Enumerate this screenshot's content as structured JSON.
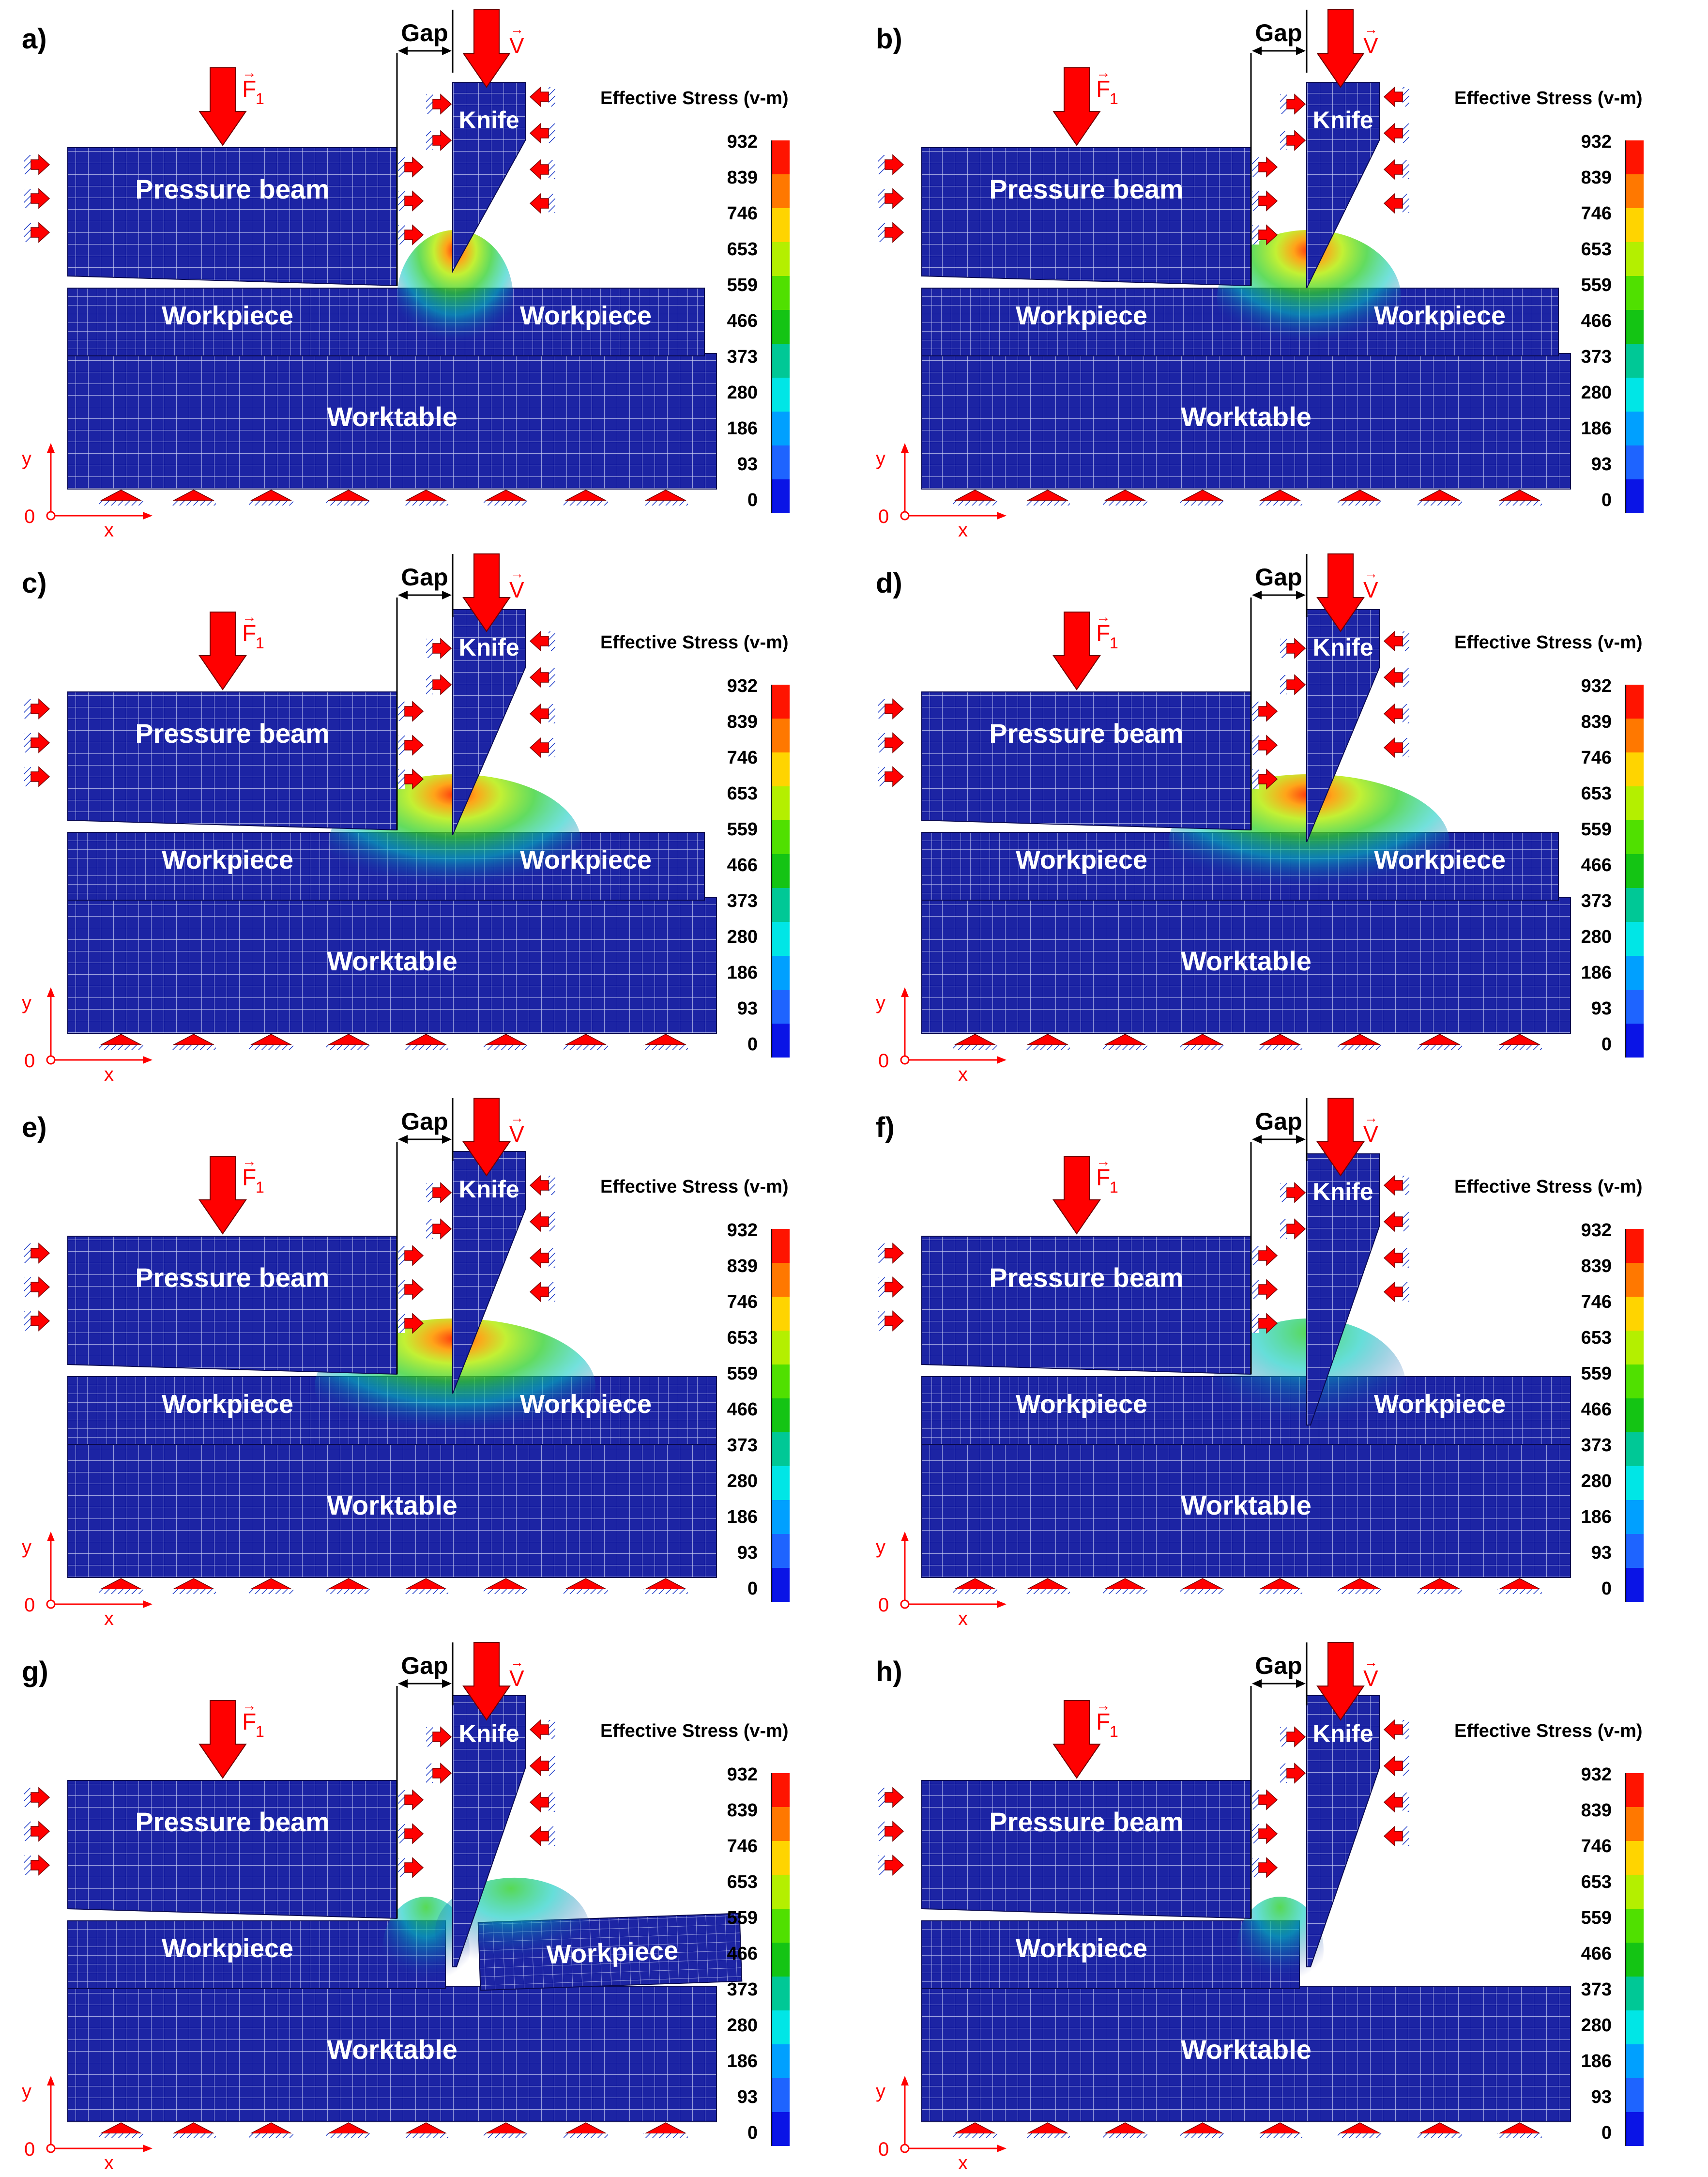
{
  "labels": {
    "pressure_beam": "Pressure beam",
    "knife": "Knife",
    "workpiece": "Workpiece",
    "worktable": "Worktable",
    "gap": "Gap",
    "force": "F",
    "force_sub": "1",
    "velocity": "V",
    "axis_x": "x",
    "axis_y": "y",
    "origin": "0",
    "colorbar_title": "Effective Stress (v-m)"
  },
  "colorbar": {
    "ticks": [
      "932",
      "839",
      "746",
      "653",
      "559",
      "466",
      "373",
      "280",
      "186",
      "93",
      "0"
    ],
    "colors": [
      "#ff1400",
      "#ff7800",
      "#ffd400",
      "#b4ef00",
      "#50e000",
      "#14c414",
      "#00c896",
      "#00e6e6",
      "#00a0ff",
      "#1e64ff",
      "#0a14e6"
    ]
  },
  "colors": {
    "mesh_fill": "#1c24a4",
    "mesh_line": "#c8ccf0",
    "arrow_red": "#ff0000",
    "hatch_blue": "#1e3cc8"
  },
  "panels": [
    {
      "id": "a",
      "label": "a)",
      "stage": 0
    },
    {
      "id": "b",
      "label": "b)",
      "stage": 1
    },
    {
      "id": "c",
      "label": "c)",
      "stage": 2
    },
    {
      "id": "d",
      "label": "d)",
      "stage": 3
    },
    {
      "id": "e",
      "label": "e)",
      "stage": 4
    },
    {
      "id": "f",
      "label": "f)",
      "stage": 5
    },
    {
      "id": "g",
      "label": "g)",
      "stage": 6
    },
    {
      "id": "h",
      "label": "h)",
      "stage": 7
    }
  ]
}
